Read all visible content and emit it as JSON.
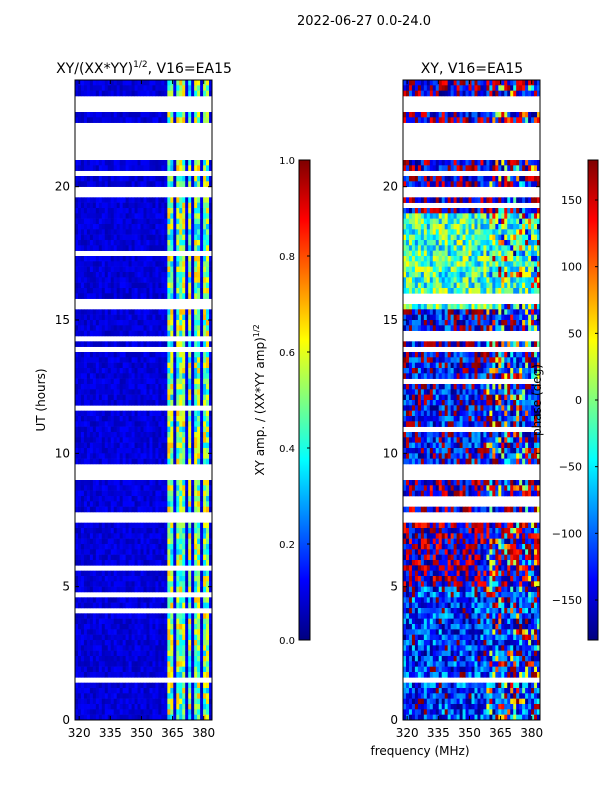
{
  "suptitle": "2022-06-27 0.0-24.0",
  "colors": {
    "jet": [
      "#00007f",
      "#0000ff",
      "#007fff",
      "#00ffff",
      "#7fff7f",
      "#ffff00",
      "#ff7f00",
      "#ff0000",
      "#7f0000"
    ]
  },
  "chart_data": [
    {
      "type": "heatmap",
      "name": "amplitude-panel",
      "title": "XY/(XX*YY)^1/2, V16=EA15",
      "title_main": "XY/(XX*YY)",
      "title_sup": "1/2",
      "title_rest": ", V16=EA15",
      "xlabel": "",
      "ylabel": "UT (hours)",
      "xlim": [
        318.0,
        384.0
      ],
      "ylim": [
        0,
        24
      ],
      "xticks": [
        320,
        335,
        350,
        365,
        380
      ],
      "yticks": [
        0,
        5,
        10,
        15,
        20
      ],
      "colorbar": {
        "label_main": "XY amp. / (XX*YY amp)",
        "label_sup": "1/2",
        "range": [
          0.0,
          1.0
        ],
        "ticks": [
          0.0,
          0.2,
          0.4,
          0.6,
          0.8,
          1.0
        ],
        "tick_labels": [
          "0.0",
          "0.2",
          "0.4",
          "0.6",
          "0.8",
          "1.0"
        ]
      },
      "blank_bands_hours": [
        [
          21.0,
          22.4
        ],
        [
          23.1,
          23.3
        ],
        [
          22.8,
          22.9
        ],
        [
          20.4,
          20.6
        ],
        [
          19.6,
          19.9
        ],
        [
          9.1,
          9.5
        ],
        [
          7.5,
          7.7
        ],
        [
          1.4,
          1.6
        ],
        [
          15.7,
          15.85
        ],
        [
          14.3,
          14.45
        ],
        [
          13.9,
          14.0
        ]
      ],
      "bright_channels_mhz": [
        [
          362.5,
          365.5
        ],
        [
          367.5,
          370.5
        ],
        [
          372.0,
          374.0
        ],
        [
          376.0,
          378.5
        ],
        [
          380.0,
          382.0
        ]
      ],
      "baseline_amplitude": 0.05,
      "channel_amplitude": 0.5
    },
    {
      "type": "heatmap",
      "name": "phase-panel",
      "title": "XY, V16=EA15",
      "xlabel": "frequency (MHz)",
      "ylabel": "",
      "xlim": [
        318.0,
        384.0
      ],
      "ylim": [
        0,
        24
      ],
      "xticks": [
        320,
        335,
        350,
        365,
        380
      ],
      "yticks": [
        0,
        5,
        10,
        15,
        20
      ],
      "colorbar": {
        "label": "phase (deg)",
        "range": [
          -180,
          180
        ],
        "ticks": [
          -150,
          -100,
          -50,
          0,
          50,
          100,
          150
        ],
        "tick_labels": [
          "−150",
          "−100",
          "−50",
          "0",
          "50",
          "100",
          "150"
        ]
      },
      "blank_bands_hours": [
        [
          21.0,
          22.4
        ],
        [
          23.1,
          23.3
        ],
        [
          22.8,
          22.9
        ],
        [
          20.4,
          20.6
        ],
        [
          19.6,
          19.9
        ],
        [
          9.1,
          9.5
        ],
        [
          7.5,
          7.7
        ],
        [
          1.4,
          1.6
        ],
        [
          15.7,
          15.85
        ],
        [
          14.3,
          14.45
        ],
        [
          13.9,
          14.0
        ]
      ],
      "phase_regions": [
        {
          "hours": [
            19.0,
            24.0
          ],
          "dominant_deg": -160
        },
        {
          "hours": [
            15.5,
            19.0
          ],
          "dominant_deg": -20
        },
        {
          "hours": [
            9.5,
            15.5
          ],
          "dominant_deg": -140
        },
        {
          "hours": [
            5.0,
            9.5
          ],
          "dominant_deg": -170
        },
        {
          "hours": [
            0.0,
            5.0
          ],
          "dominant_deg": -120
        }
      ]
    }
  ]
}
